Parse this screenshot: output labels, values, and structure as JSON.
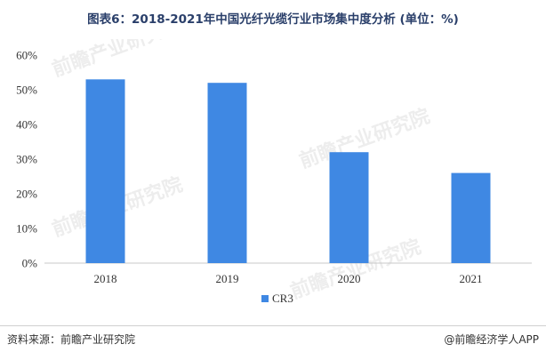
{
  "title": "图表6：2018-2021年中国光纤光缆行业市场集中度分析 (单位：%)",
  "watermark_text": "前瞻产业研究院",
  "chart_data": {
    "type": "bar",
    "categories": [
      "2018",
      "2019",
      "2020",
      "2021"
    ],
    "series": [
      {
        "name": "CR3",
        "values": [
          53,
          52,
          32,
          26
        ],
        "color": "#3f88e3"
      }
    ],
    "ylim": [
      0,
      60
    ],
    "yticks": [
      0,
      10,
      20,
      30,
      40,
      50,
      60
    ],
    "ytick_labels": [
      "0%",
      "10%",
      "20%",
      "30%",
      "40%",
      "50%",
      "60%"
    ],
    "grid": false,
    "legend_position": "bottom"
  },
  "footer": {
    "source": "资料来源：前瞻产业研究院",
    "brand": "@前瞻经济学人APP"
  }
}
